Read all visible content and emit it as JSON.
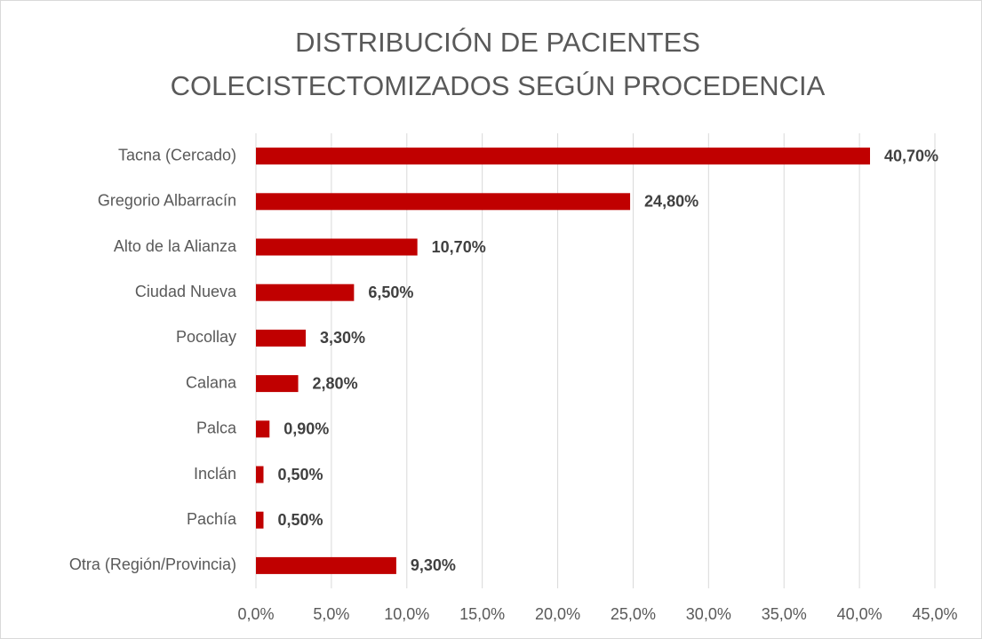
{
  "chart_data": {
    "type": "bar",
    "orientation": "horizontal",
    "title": [
      "DISTRIBUCIÓN DE PACIENTES",
      "COLECISTECTOMIZADOS SEGÚN PROCEDENCIA"
    ],
    "categories": [
      "Tacna (Cercado)",
      "Gregorio Albarracín",
      "Alto de la Alianza",
      "Ciudad Nueva",
      "Pocollay",
      "Calana",
      "Palca",
      "Inclán",
      "Pachía",
      "Otra (Región/Provincia)"
    ],
    "values": [
      40.7,
      24.8,
      10.7,
      6.5,
      3.3,
      2.8,
      0.9,
      0.5,
      0.5,
      9.3
    ],
    "value_labels": [
      "40,70%",
      "24,80%",
      "10,70%",
      "6,50%",
      "3,30%",
      "2,80%",
      "0,90%",
      "0,50%",
      "0,50%",
      "9,30%"
    ],
    "color": "#c00000",
    "xlim": [
      0,
      45
    ],
    "xticks": [
      {
        "value": 0,
        "label": "0,0%"
      },
      {
        "value": 5,
        "label": "5,0%"
      },
      {
        "value": 10,
        "label": "10,0%"
      },
      {
        "value": 15,
        "label": "15,0%"
      },
      {
        "value": 20,
        "label": "20,0%"
      },
      {
        "value": 25,
        "label": "25,0%"
      },
      {
        "value": 30,
        "label": "30,0%"
      },
      {
        "value": 35,
        "label": "35,0%"
      },
      {
        "value": 40,
        "label": "40,0%"
      },
      {
        "value": 45,
        "label": "45,0%"
      }
    ],
    "grid": true
  }
}
